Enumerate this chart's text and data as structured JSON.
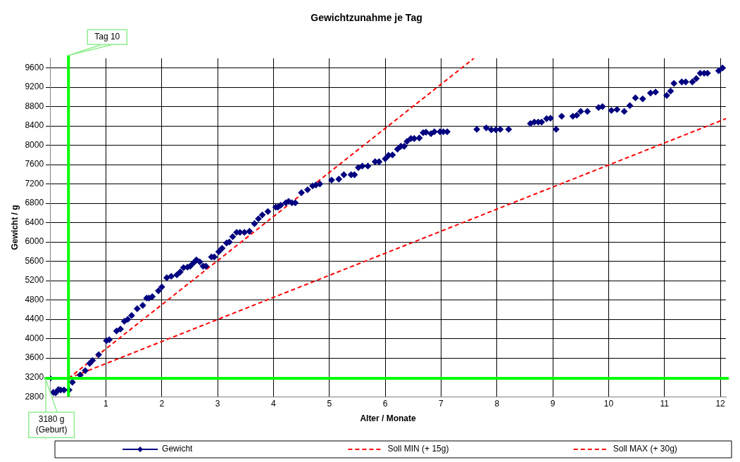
{
  "chart_data": {
    "type": "scatter",
    "title": "Gewichtzunahme je Tag",
    "xlabel": "Alter / Monate",
    "ylabel": "Gewicht / g",
    "xlim": [
      0,
      12.1
    ],
    "xticks": [
      1,
      2,
      3,
      4,
      5,
      6,
      7,
      8,
      9,
      10,
      11,
      12
    ],
    "ylim": [
      2800,
      9800
    ],
    "yticks": [
      2800,
      3200,
      3600,
      4000,
      4400,
      4800,
      5200,
      5600,
      6000,
      6400,
      6800,
      7200,
      7600,
      8000,
      8400,
      8800,
      9200,
      9600
    ],
    "grid": true,
    "legend": "bottom",
    "series": [
      {
        "name": "Gewicht",
        "marker": "diamond",
        "color": "#000080",
        "x": [
          0,
          0.06,
          0.1,
          0.15,
          0.19,
          0.25,
          0.34,
          0.4,
          0.54,
          0.63,
          0.71,
          0.76,
          0.87,
          1.01,
          1.06,
          1.19,
          1.26,
          1.33,
          1.39,
          1.46,
          1.56,
          1.66,
          1.73,
          1.77,
          1.83,
          1.94,
          2.0,
          2.09,
          2.17,
          2.27,
          2.33,
          2.39,
          2.46,
          2.51,
          2.57,
          2.62,
          2.68,
          2.74,
          2.79,
          2.89,
          2.94,
          3.02,
          3.08,
          3.16,
          3.21,
          3.27,
          3.34,
          3.4,
          3.48,
          3.57,
          3.66,
          3.73,
          3.8,
          3.9,
          4.04,
          4.08,
          4.13,
          4.22,
          4.27,
          4.33,
          4.39,
          4.5,
          4.61,
          4.7,
          4.76,
          4.83,
          5.04,
          5.17,
          5.26,
          5.39,
          5.45,
          5.52,
          5.59,
          5.69,
          5.82,
          5.89,
          6.0,
          6.06,
          6.13,
          6.22,
          6.28,
          6.34,
          6.39,
          6.46,
          6.52,
          6.61,
          6.68,
          6.73,
          6.82,
          6.88,
          6.98,
          7.04,
          7.11,
          7.64,
          7.81,
          7.9,
          7.98,
          8.06,
          8.21,
          8.6,
          8.67,
          8.74,
          8.8,
          8.89,
          8.96,
          9.06,
          9.16,
          9.36,
          9.43,
          9.5,
          9.62,
          9.82,
          9.89,
          10.05,
          10.15,
          10.28,
          10.38,
          10.48,
          10.61,
          10.75,
          10.84,
          11.04,
          11.11,
          11.17,
          11.31,
          11.38,
          11.5,
          11.57,
          11.64,
          11.71,
          11.77,
          11.97,
          12.04
        ],
        "values": [
          3180,
          2890,
          2880,
          2950,
          2940,
          2940,
          2940,
          3100,
          3250,
          3340,
          3490,
          3550,
          3670,
          3960,
          3980,
          4160,
          4200,
          4360,
          4400,
          4480,
          4620,
          4690,
          4840,
          4840,
          4870,
          4990,
          5070,
          5260,
          5290,
          5320,
          5380,
          5470,
          5480,
          5500,
          5570,
          5630,
          5590,
          5500,
          5500,
          5690,
          5690,
          5800,
          5870,
          5980,
          6000,
          6110,
          6200,
          6200,
          6200,
          6220,
          6380,
          6480,
          6560,
          6630,
          6720,
          6720,
          6760,
          6810,
          6840,
          6810,
          6810,
          7020,
          7080,
          7160,
          7180,
          7200,
          7280,
          7300,
          7390,
          7390,
          7390,
          7540,
          7570,
          7570,
          7660,
          7660,
          7720,
          7790,
          7800,
          7920,
          7980,
          7980,
          8080,
          8140,
          8140,
          8150,
          8260,
          8270,
          8240,
          8280,
          8280,
          8280,
          8280,
          8330,
          8360,
          8320,
          8320,
          8330,
          8330,
          8450,
          8480,
          8480,
          8480,
          8550,
          8560,
          8330,
          8600,
          8600,
          8620,
          8700,
          8700,
          8780,
          8800,
          8720,
          8740,
          8700,
          8820,
          8980,
          8960,
          9080,
          9100,
          9030,
          9120,
          9280,
          9310,
          9310,
          9310,
          9380,
          9490,
          9490,
          9490,
          9540,
          9600
        ]
      },
      {
        "name": "Soll MIN (+ 15g)",
        "type": "line",
        "marker": "none",
        "line_style": "dashed",
        "color": "#ff0000",
        "x": [
          0.33,
          12.1
        ],
        "values": [
          3180,
          8550
        ]
      },
      {
        "name": "Soll MAX (+ 30g)",
        "type": "line",
        "marker": "none",
        "line_style": "dashed",
        "color": "#ff0000",
        "x": [
          0.33,
          7.59
        ],
        "values": [
          3180,
          9800
        ]
      }
    ],
    "ref_lines": [
      {
        "axis": "x",
        "value": 0.33,
        "label": "Tag 10",
        "color": "#00ff00"
      },
      {
        "axis": "y",
        "value": 3180,
        "label": "3180 g\n(Geburt)",
        "color": "#00ff00"
      }
    ]
  }
}
